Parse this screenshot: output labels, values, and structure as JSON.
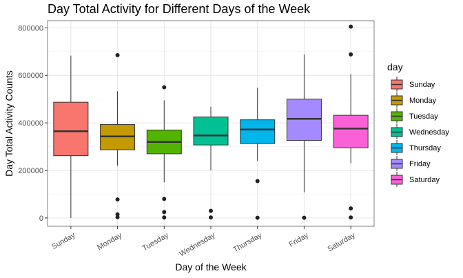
{
  "chart_data": {
    "type": "box",
    "title": "Day Total Activity for Different Days of the Week",
    "xlabel": "Day of the Week",
    "ylabel": "Day Total Activity Counts",
    "ylim": [
      -35000,
      830000
    ],
    "yticks": [
      0,
      200000,
      400000,
      600000,
      800000
    ],
    "ytick_labels": [
      "0",
      "200000",
      "400000",
      "600000",
      "800000"
    ],
    "grid": true,
    "legend": {
      "title": "day",
      "position": "right"
    },
    "categories": [
      "Sunday",
      "Monday",
      "Tuesday",
      "Wednesday",
      "Thursday",
      "Friday",
      "Saturday"
    ],
    "colors": [
      "#F8766D",
      "#C49A00",
      "#53B400",
      "#00C094",
      "#00B6EB",
      "#A58AFF",
      "#FB61D7"
    ],
    "boxes": [
      {
        "name": "Sunday",
        "whisker_low": 0,
        "q1": 262000,
        "median": 365000,
        "q3": 487000,
        "whisker_high": 683000,
        "outliers": []
      },
      {
        "name": "Monday",
        "whisker_low": 220000,
        "q1": 287000,
        "median": 343000,
        "q3": 393000,
        "whisker_high": 533000,
        "outliers": [
          685000,
          78000,
          15000,
          3000
        ]
      },
      {
        "name": "Tuesday",
        "whisker_low": 150000,
        "q1": 270000,
        "median": 320000,
        "q3": 370000,
        "whisker_high": 495000,
        "outliers": [
          550000,
          80000,
          25000,
          2000
        ]
      },
      {
        "name": "Wednesday",
        "whisker_low": 200000,
        "q1": 307000,
        "median": 347000,
        "q3": 425000,
        "whisker_high": 468000,
        "outliers": [
          30000,
          2000
        ]
      },
      {
        "name": "Thursday",
        "whisker_low": 240000,
        "q1": 313000,
        "median": 372000,
        "q3": 413000,
        "whisker_high": 548000,
        "outliers": [
          155000,
          1000
        ]
      },
      {
        "name": "Friday",
        "whisker_low": 108000,
        "q1": 326000,
        "median": 417000,
        "q3": 500000,
        "whisker_high": 688000,
        "outliers": [
          1000
        ]
      },
      {
        "name": "Saturday",
        "whisker_low": 230000,
        "q1": 295000,
        "median": 376000,
        "q3": 432000,
        "whisker_high": 605000,
        "outliers": [
          805000,
          688000,
          40000,
          2000
        ]
      }
    ]
  }
}
